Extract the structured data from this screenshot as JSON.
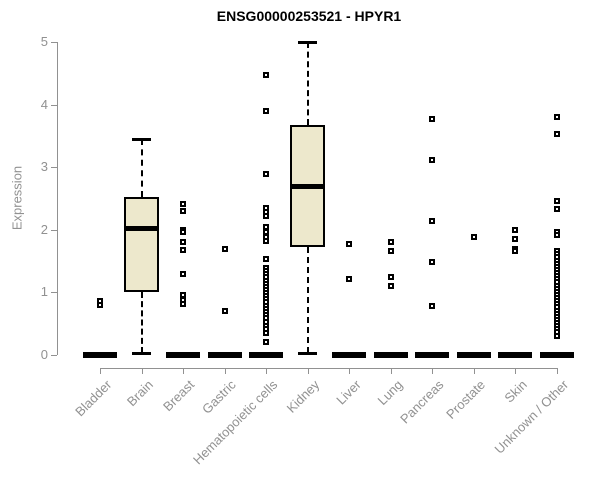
{
  "title": "ENSG00000253521 - HPYR1",
  "axes": {
    "y_label": "Expression",
    "y_ticks": [
      0,
      1,
      2,
      3,
      4,
      5
    ],
    "x_categories": [
      "Bladder",
      "Brain",
      "Breast",
      "Gastric",
      "Hematopoietic cells",
      "Kidney",
      "Liver",
      "Lung",
      "Pancreas",
      "Prostate",
      "Skin",
      "Unknown / Other"
    ]
  },
  "colors": {
    "box_fill": "#ede8cc",
    "box_stroke": "#000000",
    "axis_line": "#919191",
    "text_muted": "#919191",
    "title_color": "#000000"
  },
  "chart_data": {
    "type": "boxplot",
    "title": "ENSG00000253521 - HPYR1",
    "xlabel": "",
    "ylabel": "Expression",
    "ylim": [
      0,
      5
    ],
    "grid": false,
    "categories": [
      "Bladder",
      "Brain",
      "Breast",
      "Gastric",
      "Hematopoietic cells",
      "Kidney",
      "Liver",
      "Lung",
      "Pancreas",
      "Prostate",
      "Skin",
      "Unknown / Other"
    ],
    "boxes": [
      {
        "category": "Bladder",
        "collapsed": true,
        "q1": 0,
        "median": 0,
        "q3": 0,
        "whisker_low": 0,
        "whisker_high": 0,
        "outliers": [
          0.86,
          0.8
        ]
      },
      {
        "category": "Brain",
        "collapsed": false,
        "q1": 1.0,
        "median": 2.03,
        "q3": 2.52,
        "whisker_low": 0.03,
        "whisker_high": 3.45,
        "outliers": []
      },
      {
        "category": "Breast",
        "collapsed": true,
        "q1": 0,
        "median": 0,
        "q3": 0,
        "whisker_low": 0,
        "whisker_high": 0,
        "outliers": [
          2.41,
          2.3,
          2.0,
          1.96,
          1.81,
          1.68,
          1.3,
          0.96,
          0.88,
          0.82
        ]
      },
      {
        "category": "Gastric",
        "collapsed": true,
        "q1": 0,
        "median": 0,
        "q3": 0,
        "whisker_low": 0,
        "whisker_high": 0,
        "outliers": [
          1.7,
          0.71
        ]
      },
      {
        "category": "Hematopoietic cells",
        "collapsed": true,
        "q1": 0,
        "median": 0,
        "q3": 0,
        "whisker_low": 0,
        "whisker_high": 0,
        "outliers": [
          4.48,
          3.9,
          2.89,
          2.35,
          2.28,
          2.22,
          2.04,
          1.97,
          1.89,
          1.82,
          1.54,
          1.39,
          1.34,
          1.29,
          1.24,
          1.19,
          1.14,
          1.09,
          1.04,
          0.99,
          0.94,
          0.89,
          0.84,
          0.79,
          0.74,
          0.69,
          0.64,
          0.59,
          0.53,
          0.47,
          0.41,
          0.35,
          0.2
        ]
      },
      {
        "category": "Kidney",
        "collapsed": false,
        "q1": 1.73,
        "median": 2.7,
        "q3": 3.67,
        "whisker_low": 0.03,
        "whisker_high": 5.0,
        "outliers": []
      },
      {
        "category": "Liver",
        "collapsed": true,
        "q1": 0,
        "median": 0,
        "q3": 0,
        "whisker_low": 0,
        "whisker_high": 0,
        "outliers": [
          1.77,
          1.22
        ]
      },
      {
        "category": "Lung",
        "collapsed": true,
        "q1": 0,
        "median": 0,
        "q3": 0,
        "whisker_low": 0,
        "whisker_high": 0,
        "outliers": [
          1.81,
          1.66,
          1.24,
          1.1
        ]
      },
      {
        "category": "Pancreas",
        "collapsed": true,
        "q1": 0,
        "median": 0,
        "q3": 0,
        "whisker_low": 0,
        "whisker_high": 0,
        "outliers": [
          3.77,
          3.12,
          2.15,
          1.49,
          0.78
        ]
      },
      {
        "category": "Prostate",
        "collapsed": true,
        "q1": 0,
        "median": 0,
        "q3": 0,
        "whisker_low": 0,
        "whisker_high": 0,
        "outliers": [
          1.89
        ]
      },
      {
        "category": "Skin",
        "collapsed": true,
        "q1": 0,
        "median": 0,
        "q3": 0,
        "whisker_low": 0,
        "whisker_high": 0,
        "outliers": [
          2.0,
          1.85,
          1.7,
          1.66
        ]
      },
      {
        "category": "Unknown / Other",
        "collapsed": true,
        "q1": 0,
        "median": 0,
        "q3": 0,
        "whisker_low": 0,
        "whisker_high": 0,
        "outliers": [
          3.81,
          3.54,
          2.46,
          2.33,
          1.96,
          1.92,
          1.66,
          1.61,
          1.56,
          1.51,
          1.46,
          1.41,
          1.36,
          1.31,
          1.26,
          1.21,
          1.16,
          1.11,
          1.06,
          1.01,
          0.96,
          0.91,
          0.86,
          0.81,
          0.76,
          0.71,
          0.66,
          0.61,
          0.56,
          0.51,
          0.46,
          0.41,
          0.36,
          0.31
        ]
      }
    ]
  }
}
